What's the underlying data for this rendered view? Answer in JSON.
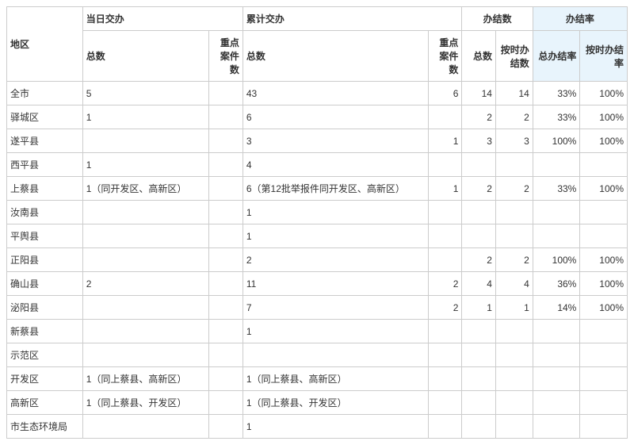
{
  "headers": {
    "region": "地区",
    "dailyAssign": "当日交办",
    "cumulativeAssign": "累计交办",
    "completedCount": "办结数",
    "completionRate": "办结率",
    "total": "总数",
    "keyCases": "重点案件数",
    "keyCasesShort": "重点案件数",
    "completedTotal": "总数",
    "completedOnTime": "按时办结数",
    "rateTotal": "总办结率",
    "rateOnTime": "按时办结率"
  },
  "colWidths": {
    "region": 90,
    "dailyTotal": 150,
    "dailyKey": 40,
    "cumTotal": 220,
    "cumKey": 40,
    "compTotal": 40,
    "compOnTime": 44,
    "rateTotal": 56,
    "rateOnTime": 56
  },
  "rows": [
    {
      "region": "全市",
      "dailyTotal": "5",
      "dailyKey": "",
      "cumTotal": "43",
      "cumKey": "6",
      "compTotal": "14",
      "compOnTime": "14",
      "rateTotal": "33%",
      "rateOnTime": "100%"
    },
    {
      "region": "驿城区",
      "dailyTotal": "1",
      "dailyKey": "",
      "cumTotal": "6",
      "cumKey": "",
      "compTotal": "2",
      "compOnTime": "2",
      "rateTotal": "33%",
      "rateOnTime": "100%"
    },
    {
      "region": "遂平县",
      "dailyTotal": "",
      "dailyKey": "",
      "cumTotal": "3",
      "cumKey": "1",
      "compTotal": "3",
      "compOnTime": "3",
      "rateTotal": "100%",
      "rateOnTime": "100%"
    },
    {
      "region": "西平县",
      "dailyTotal": "1",
      "dailyKey": "",
      "cumTotal": "4",
      "cumKey": "",
      "compTotal": "",
      "compOnTime": "",
      "rateTotal": "",
      "rateOnTime": ""
    },
    {
      "region": "上蔡县",
      "dailyTotal": "1（同开发区、高新区）",
      "dailyKey": "",
      "cumTotal": "6（第12批举报件同开发区、高新区）",
      "cumKey": "1",
      "compTotal": "2",
      "compOnTime": "2",
      "rateTotal": "33%",
      "rateOnTime": "100%"
    },
    {
      "region": "汝南县",
      "dailyTotal": "",
      "dailyKey": "",
      "cumTotal": "1",
      "cumKey": "",
      "compTotal": "",
      "compOnTime": "",
      "rateTotal": "",
      "rateOnTime": ""
    },
    {
      "region": "平舆县",
      "dailyTotal": "",
      "dailyKey": "",
      "cumTotal": "1",
      "cumKey": "",
      "compTotal": "",
      "compOnTime": "",
      "rateTotal": "",
      "rateOnTime": ""
    },
    {
      "region": "正阳县",
      "dailyTotal": "",
      "dailyKey": "",
      "cumTotal": "2",
      "cumKey": "",
      "compTotal": "2",
      "compOnTime": "2",
      "rateTotal": "100%",
      "rateOnTime": "100%"
    },
    {
      "region": "确山县",
      "dailyTotal": "2",
      "dailyKey": "",
      "cumTotal": "11",
      "cumKey": "2",
      "compTotal": "4",
      "compOnTime": "4",
      "rateTotal": "36%",
      "rateOnTime": "100%"
    },
    {
      "region": "泌阳县",
      "dailyTotal": "",
      "dailyKey": "",
      "cumTotal": "7",
      "cumKey": "2",
      "compTotal": "1",
      "compOnTime": "1",
      "rateTotal": "14%",
      "rateOnTime": "100%"
    },
    {
      "region": "新蔡县",
      "dailyTotal": "",
      "dailyKey": "",
      "cumTotal": "1",
      "cumKey": "",
      "compTotal": "",
      "compOnTime": "",
      "rateTotal": "",
      "rateOnTime": ""
    },
    {
      "region": "示范区",
      "dailyTotal": "",
      "dailyKey": "",
      "cumTotal": "",
      "cumKey": "",
      "compTotal": "",
      "compOnTime": "",
      "rateTotal": "",
      "rateOnTime": ""
    },
    {
      "region": "开发区",
      "dailyTotal": "1（同上蔡县、高新区）",
      "dailyKey": "",
      "cumTotal": "1（同上蔡县、高新区）",
      "cumKey": "",
      "compTotal": "",
      "compOnTime": "",
      "rateTotal": "",
      "rateOnTime": ""
    },
    {
      "region": "高新区",
      "dailyTotal": "1（同上蔡县、开发区）",
      "dailyKey": "",
      "cumTotal": "1（同上蔡县、开发区）",
      "cumKey": "",
      "compTotal": "",
      "compOnTime": "",
      "rateTotal": "",
      "rateOnTime": ""
    },
    {
      "region": "市生态环境局",
      "dailyTotal": "",
      "dailyKey": "",
      "cumTotal": "1",
      "cumKey": "",
      "compTotal": "",
      "compOnTime": "",
      "rateTotal": "",
      "rateOnTime": ""
    }
  ]
}
